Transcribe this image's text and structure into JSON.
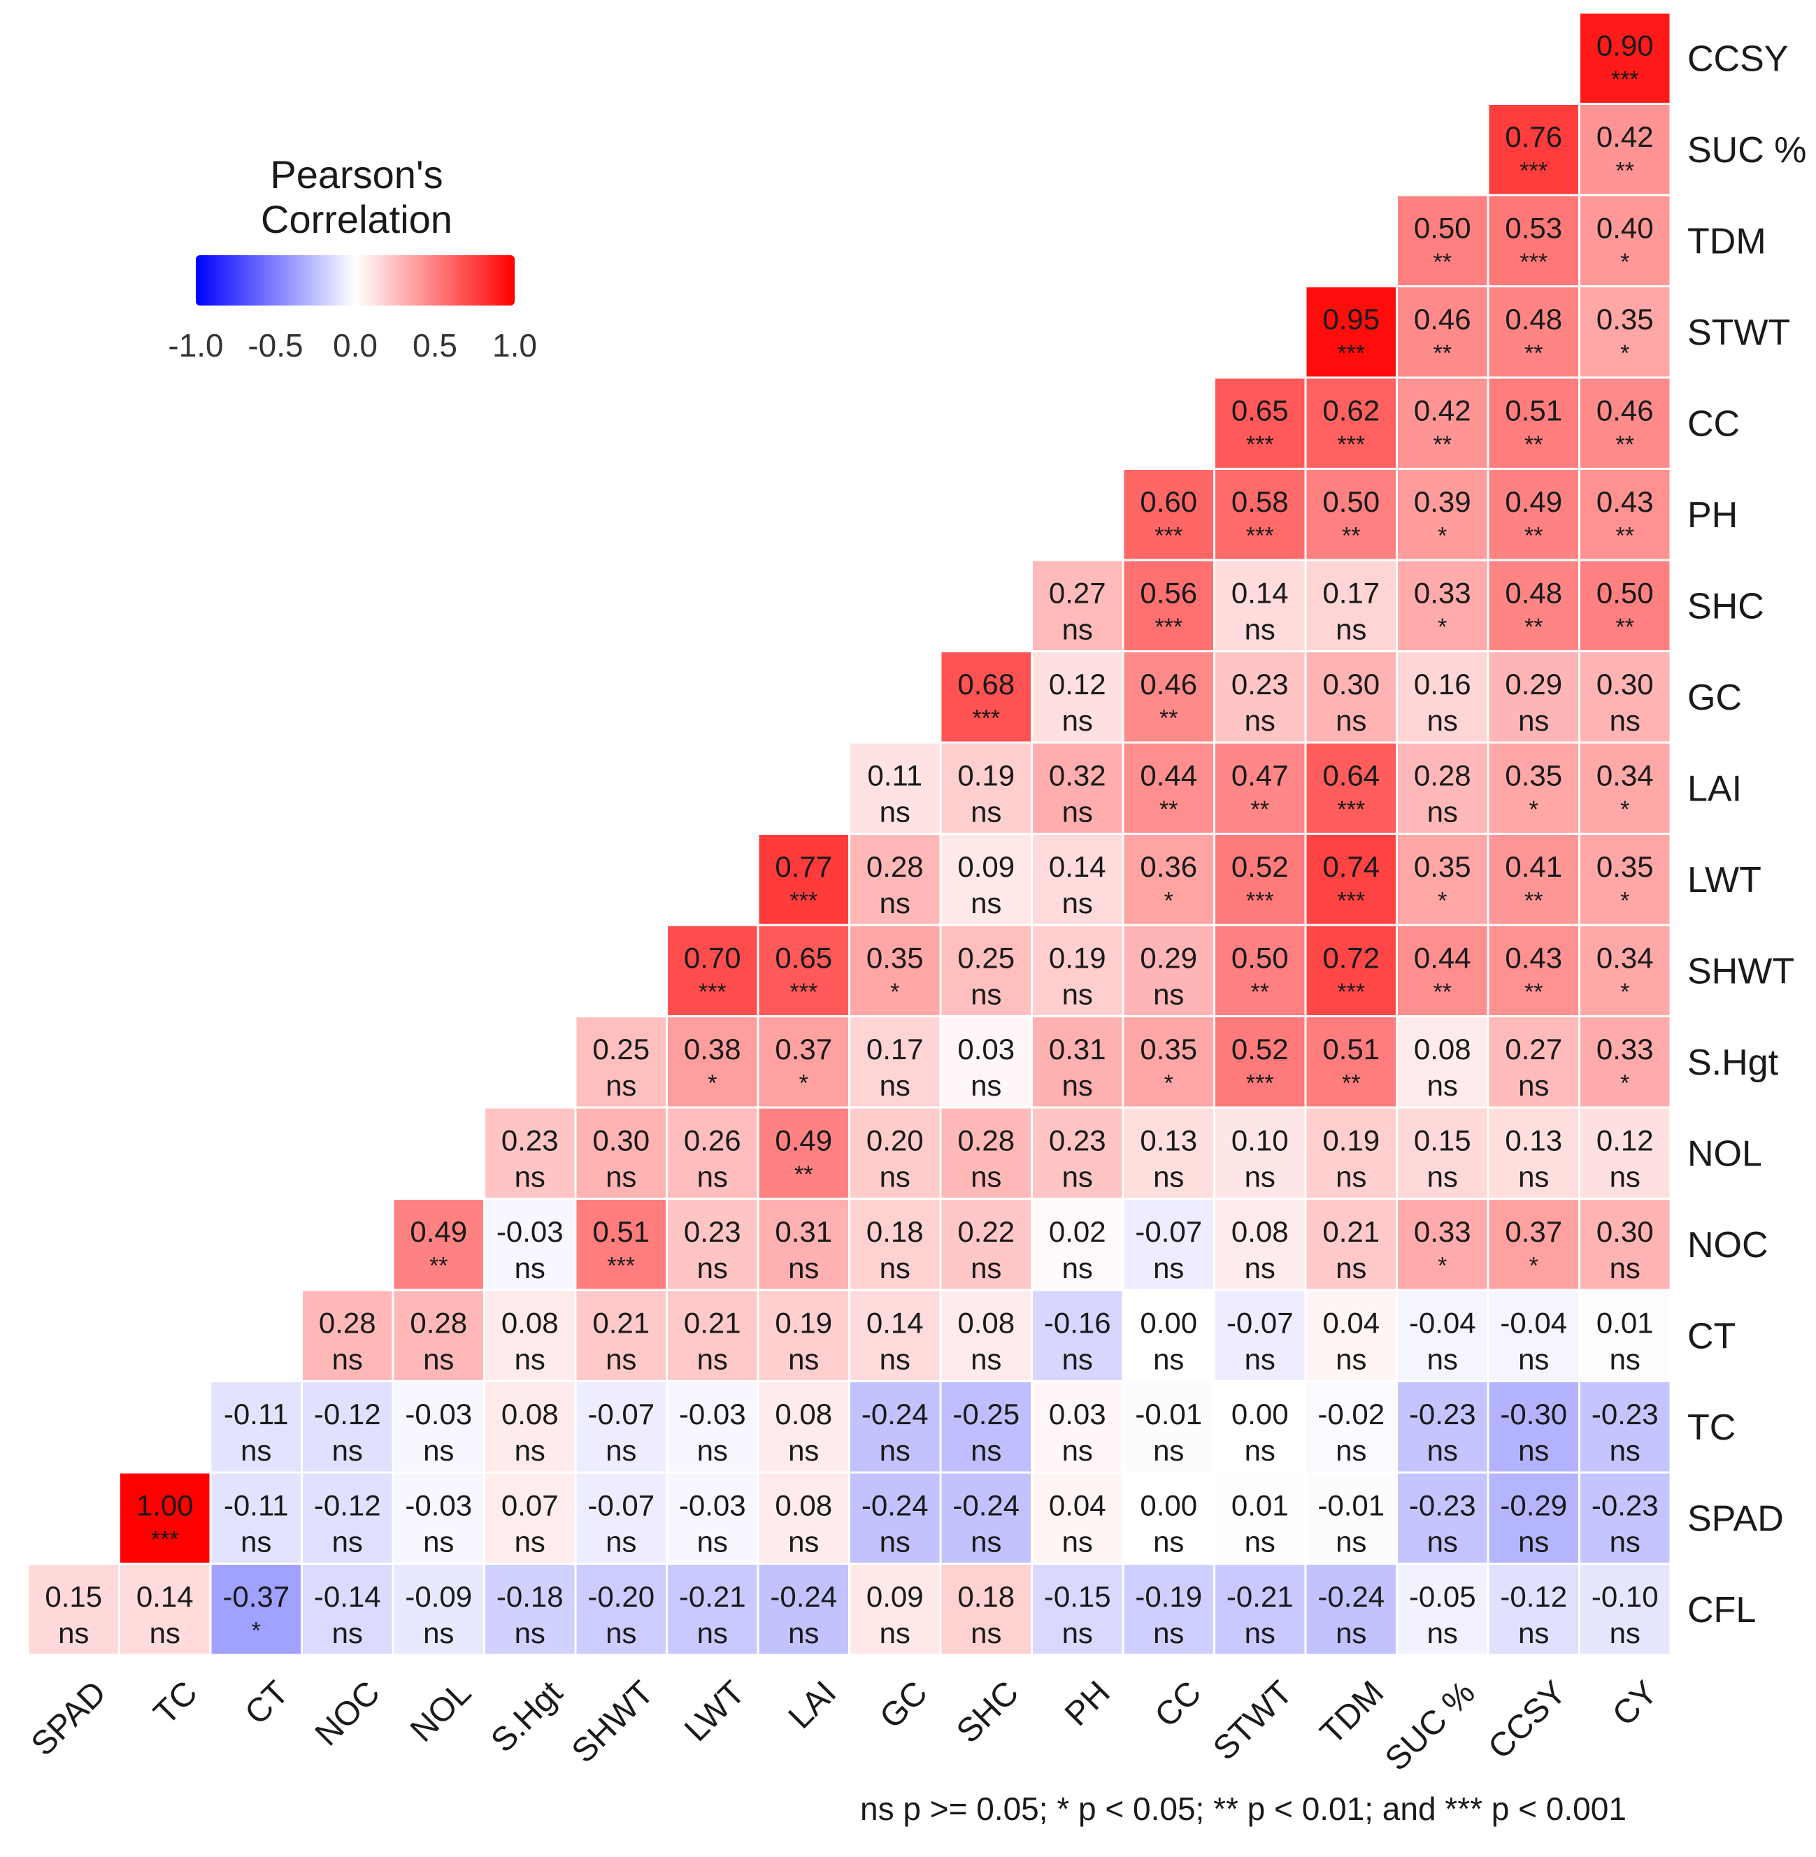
{
  "legend": {
    "title_line1": "Pearson's",
    "title_line2": "Correlation",
    "ticks": [
      "-1.0",
      "-0.5",
      "0.0",
      "0.5",
      "1.0"
    ],
    "tick_values": [
      -1.0,
      -0.5,
      0.0,
      0.5,
      1.0
    ],
    "low_color": "#0000ff",
    "mid_color": "#ffffff",
    "high_color": "#ff0000"
  },
  "footnote": "ns p >= 0.05; * p < 0.05; ** p < 0.01; and *** p < 0.001",
  "chart_data": {
    "type": "heatmap",
    "title": "Pearson's Correlation",
    "x_labels": [
      "SPAD",
      "TC",
      "CT",
      "NOC",
      "NOL",
      "S.Hgt",
      "SHWT",
      "LWT",
      "LAI",
      "GC",
      "SHC",
      "PH",
      "CC",
      "STWT",
      "TDM",
      "SUC %",
      "CCSY",
      "CY"
    ],
    "y_labels": [
      "CCSY",
      "SUC %",
      "TDM",
      "STWT",
      "CC",
      "PH",
      "SHC",
      "GC",
      "LAI",
      "LWT",
      "SHWT",
      "S.Hgt",
      "NOL",
      "NOC",
      "CT",
      "TC",
      "SPAD",
      "CFL"
    ],
    "value_range": [
      -1,
      1
    ],
    "significance_legend": "ns p >= 0.05; * p < 0.05; ** p < 0.01; and *** p < 0.001",
    "rows": [
      {
        "label": "CCSY",
        "values": [
          0.9
        ],
        "sig": [
          "***"
        ]
      },
      {
        "label": "SUC %",
        "values": [
          0.76,
          0.42
        ],
        "sig": [
          "***",
          "**"
        ]
      },
      {
        "label": "TDM",
        "values": [
          0.5,
          0.53,
          0.4
        ],
        "sig": [
          "**",
          "***",
          "*"
        ]
      },
      {
        "label": "STWT",
        "values": [
          0.95,
          0.46,
          0.48,
          0.35
        ],
        "sig": [
          "***",
          "**",
          "**",
          "*"
        ]
      },
      {
        "label": "CC",
        "values": [
          0.65,
          0.62,
          0.42,
          0.51,
          0.46
        ],
        "sig": [
          "***",
          "***",
          "**",
          "**",
          "**"
        ]
      },
      {
        "label": "PH",
        "values": [
          0.6,
          0.58,
          0.5,
          0.39,
          0.49,
          0.43
        ],
        "sig": [
          "***",
          "***",
          "**",
          "*",
          "**",
          "**"
        ]
      },
      {
        "label": "SHC",
        "values": [
          0.27,
          0.56,
          0.14,
          0.17,
          0.33,
          0.48,
          0.5
        ],
        "sig": [
          "ns",
          "***",
          "ns",
          "ns",
          "*",
          "**",
          "**"
        ]
      },
      {
        "label": "GC",
        "values": [
          0.68,
          0.12,
          0.46,
          0.23,
          0.3,
          0.16,
          0.29,
          0.3
        ],
        "sig": [
          "***",
          "ns",
          "**",
          "ns",
          "ns",
          "ns",
          "ns",
          "ns"
        ]
      },
      {
        "label": "LAI",
        "values": [
          0.11,
          0.19,
          0.32,
          0.44,
          0.47,
          0.64,
          0.28,
          0.35,
          0.34
        ],
        "sig": [
          "ns",
          "ns",
          "ns",
          "**",
          "**",
          "***",
          "ns",
          "*",
          "*"
        ]
      },
      {
        "label": "LWT",
        "values": [
          0.77,
          0.28,
          0.09,
          0.14,
          0.36,
          0.52,
          0.74,
          0.35,
          0.41,
          0.35
        ],
        "sig": [
          "***",
          "ns",
          "ns",
          "ns",
          "*",
          "***",
          "***",
          "*",
          "**",
          "*"
        ]
      },
      {
        "label": "SHWT",
        "values": [
          0.7,
          0.65,
          0.35,
          0.25,
          0.19,
          0.29,
          0.5,
          0.72,
          0.44,
          0.43,
          0.34
        ],
        "sig": [
          "***",
          "***",
          "*",
          "ns",
          "ns",
          "ns",
          "**",
          "***",
          "**",
          "**",
          "*"
        ]
      },
      {
        "label": "S.Hgt",
        "values": [
          0.25,
          0.38,
          0.37,
          0.17,
          0.03,
          0.31,
          0.35,
          0.52,
          0.51,
          0.08,
          0.27,
          0.33
        ],
        "sig": [
          "ns",
          "*",
          "*",
          "ns",
          "ns",
          "ns",
          "*",
          "***",
          "**",
          "ns",
          "ns",
          "*"
        ]
      },
      {
        "label": "NOL",
        "values": [
          0.23,
          0.3,
          0.26,
          0.49,
          0.2,
          0.28,
          0.23,
          0.13,
          0.1,
          0.19,
          0.15,
          0.13,
          0.12
        ],
        "sig": [
          "ns",
          "ns",
          "ns",
          "**",
          "ns",
          "ns",
          "ns",
          "ns",
          "ns",
          "ns",
          "ns",
          "ns",
          "ns"
        ]
      },
      {
        "label": "NOC",
        "values": [
          0.49,
          -0.03,
          0.51,
          0.23,
          0.31,
          0.18,
          0.22,
          0.02,
          -0.07,
          0.08,
          0.21,
          0.33,
          0.37,
          0.3
        ],
        "sig": [
          "**",
          "ns",
          "***",
          "ns",
          "ns",
          "ns",
          "ns",
          "ns",
          "ns",
          "ns",
          "ns",
          "*",
          "*",
          "ns"
        ]
      },
      {
        "label": "CT",
        "values": [
          0.28,
          0.28,
          0.08,
          0.21,
          0.21,
          0.19,
          0.14,
          0.08,
          -0.16,
          0.0,
          -0.07,
          0.04,
          -0.04,
          -0.04,
          0.01
        ],
        "sig": [
          "ns",
          "ns",
          "ns",
          "ns",
          "ns",
          "ns",
          "ns",
          "ns",
          "ns",
          "ns",
          "ns",
          "ns",
          "ns",
          "ns",
          "ns"
        ]
      },
      {
        "label": "TC",
        "values": [
          -0.11,
          -0.12,
          -0.03,
          0.08,
          -0.07,
          -0.03,
          0.08,
          -0.24,
          -0.25,
          0.03,
          -0.01,
          0.0,
          -0.02,
          -0.23,
          -0.3,
          -0.23
        ],
        "sig": [
          "ns",
          "ns",
          "ns",
          "ns",
          "ns",
          "ns",
          "ns",
          "ns",
          "ns",
          "ns",
          "ns",
          "ns",
          "ns",
          "ns",
          "ns",
          "ns"
        ]
      },
      {
        "label": "SPAD",
        "values": [
          1.0,
          -0.11,
          -0.12,
          -0.03,
          0.07,
          -0.07,
          -0.03,
          0.08,
          -0.24,
          -0.24,
          0.04,
          0.0,
          0.01,
          -0.01,
          -0.23,
          -0.29,
          -0.23
        ],
        "sig": [
          "***",
          "ns",
          "ns",
          "ns",
          "ns",
          "ns",
          "ns",
          "ns",
          "ns",
          "ns",
          "ns",
          "ns",
          "ns",
          "ns",
          "ns",
          "ns",
          "ns"
        ]
      },
      {
        "label": "CFL",
        "values": [
          0.15,
          0.14,
          -0.37,
          -0.14,
          -0.09,
          -0.18,
          -0.2,
          -0.21,
          -0.24,
          0.09,
          0.18,
          -0.15,
          -0.19,
          -0.21,
          -0.24,
          -0.05,
          -0.12,
          -0.1
        ],
        "sig": [
          "ns",
          "ns",
          "*",
          "ns",
          "ns",
          "ns",
          "ns",
          "ns",
          "ns",
          "ns",
          "ns",
          "ns",
          "ns",
          "ns",
          "ns",
          "ns",
          "ns",
          "ns"
        ]
      }
    ]
  }
}
